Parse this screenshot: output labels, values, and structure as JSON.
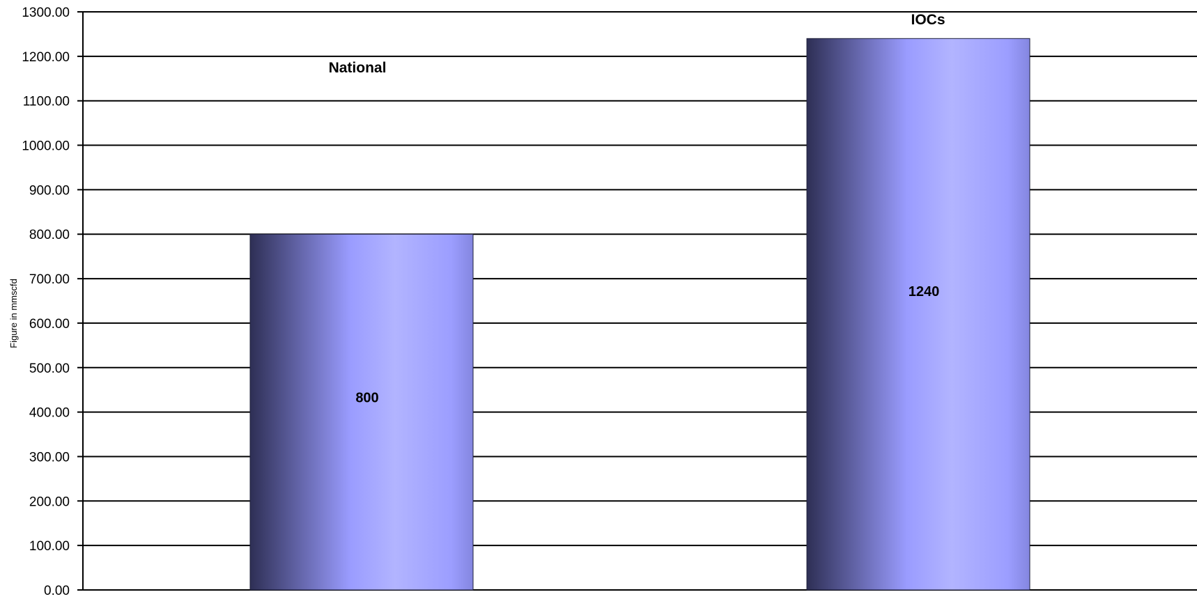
{
  "chart_data": {
    "type": "bar",
    "categories": [
      "National",
      "IOCs"
    ],
    "values": [
      800,
      1240
    ],
    "value_labels": [
      "800",
      "1240"
    ],
    "title": "",
    "xlabel": "",
    "ylabel": "Figure in mmscfd",
    "ylim": [
      0,
      1300
    ],
    "ytick_step": 100,
    "ytick_labels": [
      "0.00",
      "100.00",
      "200.00",
      "300.00",
      "400.00",
      "500.00",
      "600.00",
      "700.00",
      "800.00",
      "900.00",
      "1000.00",
      "1100.00",
      "1200.00",
      "1300.00"
    ],
    "grid": true,
    "legend": "none",
    "colors": {
      "bar_dark": "#2e2f55",
      "bar_mid": "#9a9cff",
      "bar_light": "#b2b4ff",
      "gridline": "#000000",
      "background": "#ffffff"
    }
  }
}
